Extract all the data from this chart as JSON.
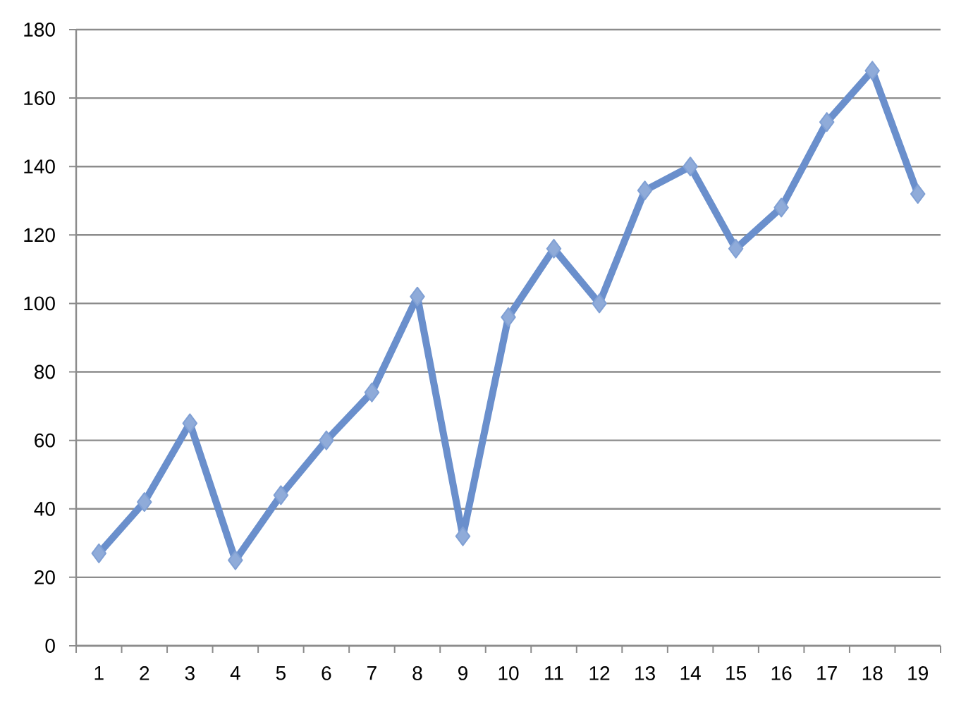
{
  "chart_data": {
    "type": "line",
    "categories": [
      "1",
      "2",
      "3",
      "4",
      "5",
      "6",
      "7",
      "8",
      "9",
      "10",
      "11",
      "12",
      "13",
      "14",
      "15",
      "16",
      "17",
      "18",
      "19"
    ],
    "series": [
      {
        "color": "#6a8fcc",
        "values": [
          27,
          42,
          65,
          25,
          44,
          60,
          74,
          102,
          32,
          96,
          116,
          100,
          133,
          140,
          116,
          128,
          153,
          168,
          132
        ]
      }
    ],
    "ylim": [
      0,
      180
    ],
    "yticks": [
      0,
      20,
      40,
      60,
      80,
      100,
      120,
      140,
      160,
      180
    ],
    "grid": "y",
    "marker": "diamond",
    "line_style": "solid",
    "legend": false
  }
}
